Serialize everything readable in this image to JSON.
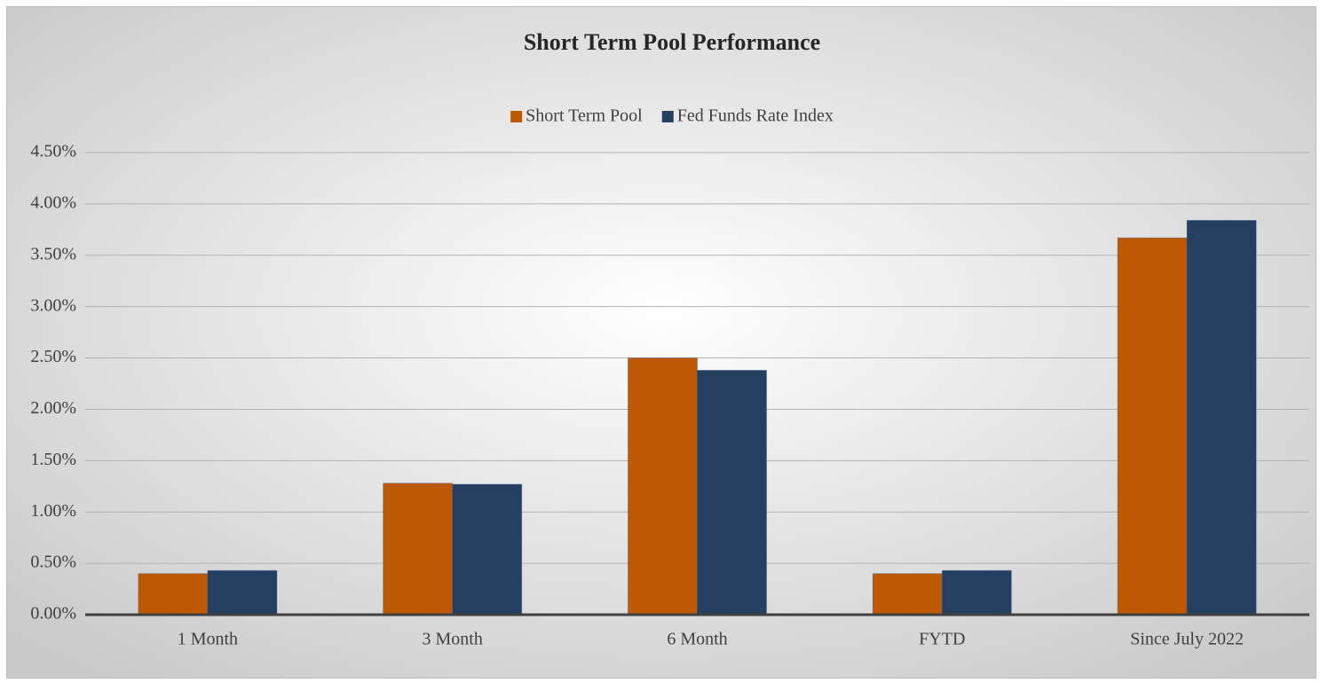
{
  "chart_data": {
    "type": "bar",
    "title": "Short Term Pool Performance",
    "categories": [
      "1 Month",
      "3 Month",
      "6 Month",
      "FYTD",
      "Since July 2022"
    ],
    "series": [
      {
        "name": "Short Term Pool",
        "color": "#bd5805",
        "values": [
          0.4,
          1.28,
          2.5,
          0.4,
          3.67
        ]
      },
      {
        "name": "Fed Funds Rate Index",
        "color": "#243f60",
        "values": [
          0.43,
          1.27,
          2.38,
          0.43,
          3.84
        ]
      }
    ],
    "ylim": [
      0,
      4.5
    ],
    "yticks": [
      {
        "value": 0,
        "label": "0.00%"
      },
      {
        "value": 0.5,
        "label": "0.50%"
      },
      {
        "value": 1,
        "label": "1.00%"
      },
      {
        "value": 1.5,
        "label": "1.50%"
      },
      {
        "value": 2,
        "label": "2.00%"
      },
      {
        "value": 2.5,
        "label": "2.50%"
      },
      {
        "value": 3,
        "label": "3.00%"
      },
      {
        "value": 3.5,
        "label": "3.50%"
      },
      {
        "value": 4,
        "label": "4.00%"
      },
      {
        "value": 4.5,
        "label": "4.50%"
      }
    ],
    "grid": true,
    "legend": "top"
  }
}
